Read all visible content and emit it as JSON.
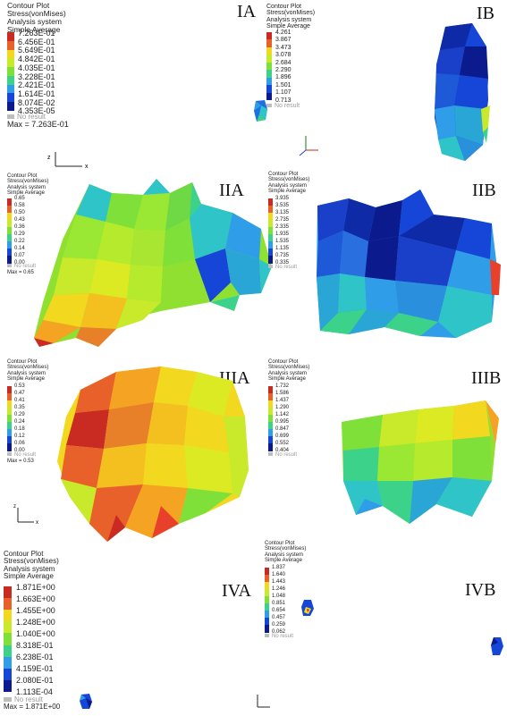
{
  "colors": {
    "scale": [
      "#0b1a8c",
      "#1546d8",
      "#2f9de8",
      "#2ec4c8",
      "#3dd28a",
      "#7fe03a",
      "#c8ea2a",
      "#f2d81f",
      "#f4a323",
      "#e8602a",
      "#c92a22"
    ],
    "no_result": "#bdbdbd"
  },
  "panels": {
    "IA": {
      "label": "IA",
      "legend": {
        "title": "Contour Plot",
        "subtitle": "Stress(vonMises)",
        "system": "Analysis system",
        "average": "Simple Average",
        "values": [
          "7.263E-01",
          "6.456E-01",
          "5.649E-01",
          "4.842E-01",
          "4.035E-01",
          "3.228E-01",
          "2.421E-01",
          "1.614E-01",
          "8.074E-02",
          "4.353E-05"
        ],
        "no_result": "No result",
        "max": "Max = 7.263E-01"
      }
    },
    "IB": {
      "label": "IB",
      "legend": {
        "title": "Contour Plot",
        "subtitle": "Stress(vonMises)",
        "system": "Analysis system",
        "average": "Simple Average",
        "values": [
          "4.261",
          "3.867",
          "3.473",
          "3.078",
          "2.684",
          "2.290",
          "1.896",
          "1.501",
          "1.107",
          "0.713"
        ],
        "no_result": "No result"
      }
    },
    "IIA": {
      "label": "IIA",
      "legend": {
        "title": "Contour Plot",
        "subtitle": "Stress(vonMises)",
        "system": "Analysis system",
        "average": "Simple Average",
        "values": [
          "0.65",
          "0.58",
          "0.50",
          "0.43",
          "0.36",
          "0.29",
          "0.22",
          "0.14",
          "0.07",
          "0.00"
        ],
        "no_result": "No result",
        "max": "Max = 0.65"
      }
    },
    "IIB": {
      "label": "IIB",
      "legend": {
        "title": "Contour Plot",
        "subtitle": "Stress(vonMises)",
        "system": "Analysis system",
        "average": "Simple Average",
        "values": [
          "3.935",
          "3.535",
          "3.135",
          "2.735",
          "2.335",
          "1.935",
          "1.535",
          "1.135",
          "0.735",
          "0.335"
        ],
        "no_result": "No result"
      }
    },
    "IIIA": {
      "label": "IIIA",
      "legend": {
        "title": "Contour Plot",
        "subtitle": "Stress(vonMises)",
        "system": "Analysis system",
        "average": "Simple Average",
        "values": [
          "0.53",
          "0.47",
          "0.41",
          "0.35",
          "0.29",
          "0.24",
          "0.18",
          "0.12",
          "0.06",
          "0.00"
        ],
        "no_result": "No result",
        "max": "Max = 0.53"
      }
    },
    "IIIB": {
      "label": "IIIB",
      "legend": {
        "title": "Contour Plot",
        "subtitle": "Stress(vonMises)",
        "system": "Analysis system",
        "average": "Simple Average",
        "values": [
          "1.732",
          "1.586",
          "1.437",
          "1.290",
          "1.142",
          "0.995",
          "0.847",
          "0.699",
          "0.552",
          "0.404"
        ],
        "no_result": "No result"
      }
    },
    "IVA": {
      "label": "IVA",
      "legend": {
        "title": "Contour Plot",
        "subtitle": "Stress(vonMises)",
        "system": "Analysis system",
        "average": "Simple Average",
        "values": [
          "1.871E+00",
          "1.663E+00",
          "1.455E+00",
          "1.248E+00",
          "1.040E+00",
          "8.318E-01",
          "6.238E-01",
          "4.159E-01",
          "2.080E-01",
          "1.113E-04"
        ],
        "no_result": "No result",
        "max": "Max = 1.871E+00"
      }
    },
    "IVB": {
      "label": "IVB",
      "legend": {
        "title": "Contour Plot",
        "subtitle": "Stress(vonMises)",
        "system": "Analysis system",
        "average": "Simple Average",
        "values": [
          "1.837",
          "1.640",
          "1.443",
          "1.246",
          "1.048",
          "0.851",
          "0.654",
          "0.457",
          "0.259",
          "0.062"
        ],
        "no_result": "No result"
      }
    }
  },
  "axis": {
    "x": "x",
    "y": "y",
    "z": "z"
  }
}
